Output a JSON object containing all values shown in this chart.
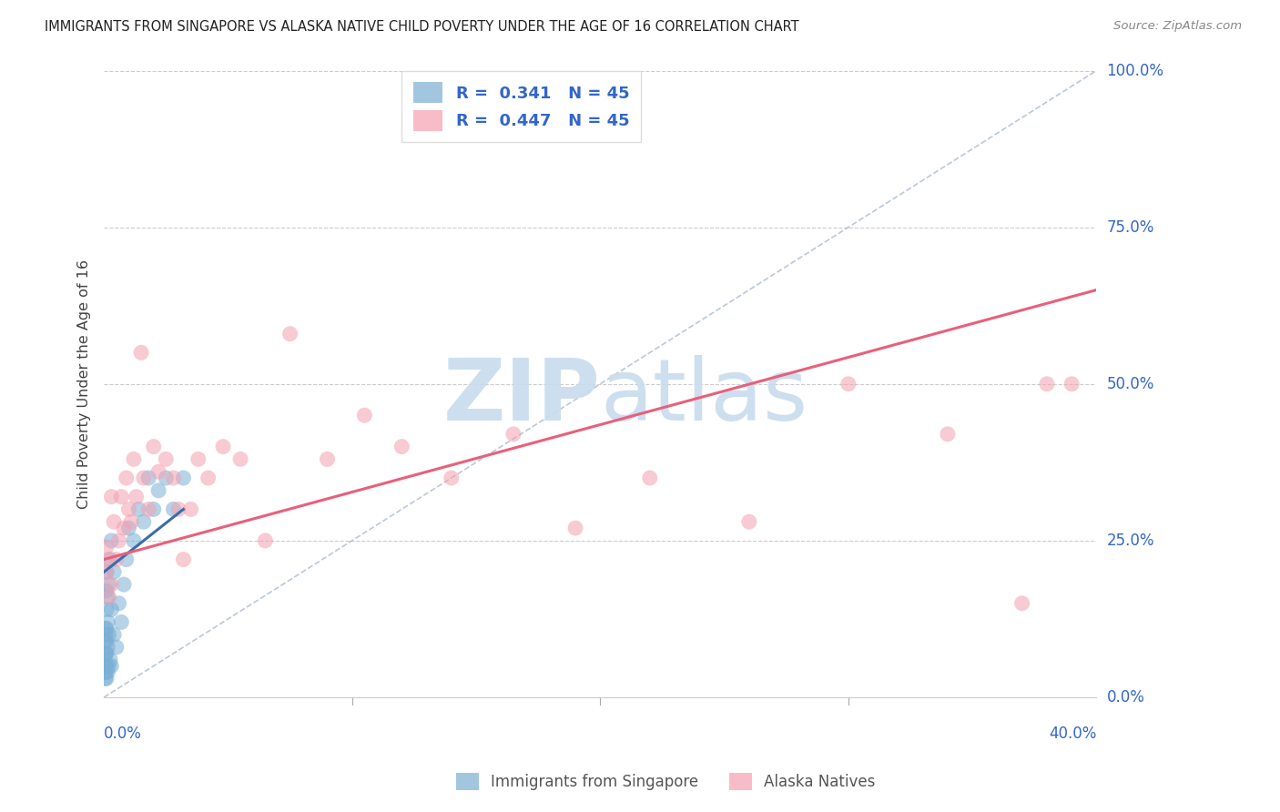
{
  "title": "IMMIGRANTS FROM SINGAPORE VS ALASKA NATIVE CHILD POVERTY UNDER THE AGE OF 16 CORRELATION CHART",
  "source": "Source: ZipAtlas.com",
  "xlabel_bottom_left": "0.0%",
  "xlabel_bottom_right": "40.0%",
  "ylabel": "Child Poverty Under the Age of 16",
  "y_ticks": [
    0.0,
    0.25,
    0.5,
    0.75,
    1.0
  ],
  "y_tick_labels": [
    "0.0%",
    "25.0%",
    "50.0%",
    "75.0%",
    "100.0%"
  ],
  "x_lim": [
    0.0,
    0.4
  ],
  "y_lim": [
    0.0,
    1.0
  ],
  "R_blue": 0.341,
  "N_blue": 45,
  "R_pink": 0.447,
  "N_pink": 45,
  "legend_label_blue": "Immigrants from Singapore",
  "legend_label_pink": "Alaska Natives",
  "blue_color": "#7BAFD4",
  "pink_color": "#F4A0B0",
  "trend_blue_color": "#3A6EA8",
  "trend_pink_color": "#E8607A",
  "watermark_zip": "ZIP",
  "watermark_atlas": "atlas",
  "watermark_color": "#C8DCEE",
  "blue_scatter_x": [
    0.0005,
    0.0005,
    0.0005,
    0.0005,
    0.0005,
    0.0008,
    0.0008,
    0.0008,
    0.001,
    0.001,
    0.001,
    0.001,
    0.001,
    0.001,
    0.001,
    0.001,
    0.0015,
    0.0015,
    0.0015,
    0.0015,
    0.002,
    0.002,
    0.002,
    0.0025,
    0.0025,
    0.003,
    0.003,
    0.003,
    0.004,
    0.004,
    0.005,
    0.006,
    0.007,
    0.008,
    0.009,
    0.01,
    0.012,
    0.014,
    0.016,
    0.018,
    0.02,
    0.022,
    0.025,
    0.028,
    0.032
  ],
  "blue_scatter_y": [
    0.03,
    0.05,
    0.07,
    0.09,
    0.11,
    0.04,
    0.07,
    0.1,
    0.03,
    0.05,
    0.07,
    0.09,
    0.11,
    0.14,
    0.17,
    0.2,
    0.04,
    0.08,
    0.12,
    0.16,
    0.05,
    0.1,
    0.18,
    0.06,
    0.22,
    0.05,
    0.14,
    0.25,
    0.1,
    0.2,
    0.08,
    0.15,
    0.12,
    0.18,
    0.22,
    0.27,
    0.25,
    0.3,
    0.28,
    0.35,
    0.3,
    0.33,
    0.35,
    0.3,
    0.35
  ],
  "pink_scatter_x": [
    0.001,
    0.001,
    0.002,
    0.002,
    0.003,
    0.003,
    0.004,
    0.005,
    0.006,
    0.007,
    0.008,
    0.009,
    0.01,
    0.011,
    0.012,
    0.013,
    0.015,
    0.016,
    0.018,
    0.02,
    0.022,
    0.025,
    0.028,
    0.03,
    0.032,
    0.035,
    0.038,
    0.042,
    0.048,
    0.055,
    0.065,
    0.075,
    0.09,
    0.105,
    0.12,
    0.14,
    0.165,
    0.19,
    0.22,
    0.26,
    0.3,
    0.34,
    0.37,
    0.39,
    0.38
  ],
  "pink_scatter_y": [
    0.24,
    0.2,
    0.22,
    0.16,
    0.32,
    0.18,
    0.28,
    0.22,
    0.25,
    0.32,
    0.27,
    0.35,
    0.3,
    0.28,
    0.38,
    0.32,
    0.55,
    0.35,
    0.3,
    0.4,
    0.36,
    0.38,
    0.35,
    0.3,
    0.22,
    0.3,
    0.38,
    0.35,
    0.4,
    0.38,
    0.25,
    0.58,
    0.38,
    0.45,
    0.4,
    0.35,
    0.42,
    0.27,
    0.35,
    0.28,
    0.5,
    0.42,
    0.15,
    0.5,
    0.5
  ],
  "blue_trend_x0": 0.0,
  "blue_trend_y0": 0.2,
  "blue_trend_x1": 0.032,
  "blue_trend_y1": 0.3,
  "pink_trend_x0": 0.0,
  "pink_trend_y0": 0.22,
  "pink_trend_x1": 0.4,
  "pink_trend_y1": 0.65
}
